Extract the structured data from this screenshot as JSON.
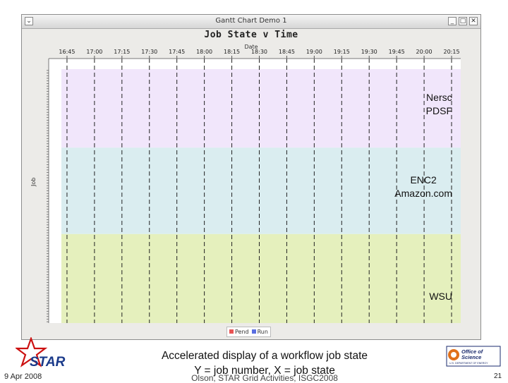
{
  "window": {
    "title": "Gantt Chart Demo 1",
    "menu_icon": "chevron-down-icon",
    "controls": {
      "minimize": "_",
      "maximize": "□",
      "close": "✕"
    }
  },
  "chart_data": {
    "type": "gantt",
    "title": "Job State v Time",
    "xlabel": "Date",
    "ylabel": "Job",
    "x_ticks": [
      "16:45",
      "17:00",
      "17:15",
      "17:30",
      "17:45",
      "18:00",
      "18:15",
      "18:30",
      "18:45",
      "19:00",
      "19:15",
      "19:30",
      "19:45",
      "20:00",
      "20:15"
    ],
    "x_range": [
      "16:35",
      "20:20"
    ],
    "bands": [
      {
        "name": "Nersc\nPDSF",
        "color": "#f1e6fb",
        "rows": 30
      },
      {
        "name": "ENC2\nAmazon.com",
        "color": "#daedf0",
        "rows": 33
      },
      {
        "name": "WSU",
        "color": "#e5f0bd",
        "rows": 34
      }
    ],
    "legend": [
      {
        "label": "Pend",
        "color": "#e85454"
      },
      {
        "label": "Run",
        "color": "#5b6fe0"
      }
    ],
    "grid": true,
    "grid_style": "dashed-vertical"
  },
  "footer": {
    "logo_text": "STAR",
    "date": "9 Apr 2008",
    "caption_line1": "Accelerated display of a workflow job state",
    "caption_line2": "Y = job number, X = job state",
    "credit": "Olson, STAR Grid Activities, ISGC2008",
    "doe_line1": "Office of",
    "doe_line2": "Science",
    "doe_line3": "U.S. DEPARTMENT OF ENERGY",
    "page_number": "21"
  },
  "colors": {
    "star_red": "#cc1111",
    "star_blue": "#1a3a8a",
    "doe_orange": "#e0701a",
    "doe_navy": "#1a2a6c"
  }
}
